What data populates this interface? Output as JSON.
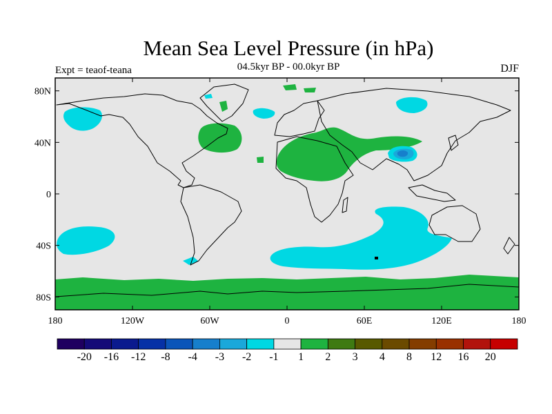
{
  "header": {
    "title": "Mean Sea Level Pressure (in hPa)",
    "subtitle": "04.5kyr BP - 00.0kyr BP",
    "expt_label": "Expt = teaof-teana",
    "season": "DJF"
  },
  "axes": {
    "lat_ticks": [
      {
        "value": 80,
        "label": "80N"
      },
      {
        "value": 40,
        "label": "40N"
      },
      {
        "value": 0,
        "label": "0"
      },
      {
        "value": -40,
        "label": "40S"
      },
      {
        "value": -80,
        "label": "80S"
      }
    ],
    "lon_ticks": [
      {
        "value": -180,
        "label": "180"
      },
      {
        "value": -120,
        "label": "120W"
      },
      {
        "value": -60,
        "label": "60W"
      },
      {
        "value": 0,
        "label": "0"
      },
      {
        "value": 60,
        "label": "60E"
      },
      {
        "value": 120,
        "label": "120E"
      },
      {
        "value": 180,
        "label": "180"
      }
    ],
    "lon_range": [
      -180,
      180
    ],
    "lat_range": [
      -90,
      90
    ]
  },
  "colorbar": {
    "colors": [
      "#1f0060",
      "#150b78",
      "#0a1a8e",
      "#0631a6",
      "#0b55b9",
      "#167fcc",
      "#1aa8da",
      "#00d8e3",
      "#e6e6e6",
      "#1eb340",
      "#3e7a12",
      "#585900",
      "#6b4a00",
      "#843d00",
      "#993000",
      "#b2130c",
      "#c60000"
    ],
    "labels": [
      "-20",
      "-16",
      "-12",
      "-8",
      "-4",
      "-3",
      "-2",
      "-1",
      "1",
      "2",
      "3",
      "4",
      "8",
      "12",
      "16",
      "20"
    ]
  },
  "colors": {
    "background": "#e6e6e6",
    "positive": "#1eb340",
    "negative_light": "#00d8e3",
    "negative_mid": "#1aa8da",
    "negative_strong": "#167fcc"
  }
}
